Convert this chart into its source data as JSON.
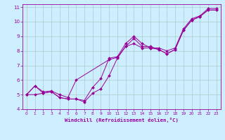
{
  "xlabel": "Windchill (Refroidissement éolien,°C)",
  "bg_color": "#cceeff",
  "line_color": "#990099",
  "grid_color": "#aacccc",
  "xlim": [
    -0.5,
    23.5
  ],
  "ylim": [
    4,
    11.2
  ],
  "xticks": [
    0,
    1,
    2,
    3,
    4,
    5,
    6,
    7,
    8,
    9,
    10,
    11,
    12,
    13,
    14,
    15,
    16,
    17,
    18,
    19,
    20,
    21,
    22,
    23
  ],
  "yticks": [
    4,
    5,
    6,
    7,
    8,
    9,
    10,
    11
  ],
  "line1_x": [
    0,
    1,
    2,
    3,
    4,
    5,
    6,
    7,
    8,
    9,
    10,
    11,
    12,
    13,
    14,
    15,
    16,
    17,
    18,
    19,
    20,
    21,
    22,
    23
  ],
  "line1_y": [
    5.0,
    5.6,
    5.1,
    5.2,
    4.8,
    4.7,
    4.7,
    4.5,
    5.1,
    5.4,
    6.3,
    7.5,
    8.3,
    8.85,
    8.3,
    8.3,
    8.1,
    7.8,
    8.1,
    9.4,
    10.1,
    10.35,
    10.8,
    10.8
  ],
  "line2_x": [
    0,
    1,
    2,
    3,
    4,
    5,
    6,
    10,
    11,
    12,
    13,
    14,
    15,
    16,
    17,
    18,
    19,
    20,
    21,
    22,
    23
  ],
  "line2_y": [
    5.0,
    5.6,
    5.2,
    5.25,
    5.0,
    4.8,
    6.0,
    7.4,
    7.55,
    8.3,
    8.5,
    8.2,
    8.2,
    8.1,
    7.8,
    8.1,
    9.4,
    10.1,
    10.35,
    10.8,
    10.8
  ],
  "line3_x": [
    0,
    1,
    2,
    3,
    4,
    5,
    6,
    7,
    8,
    9,
    10,
    11,
    12,
    13,
    14,
    15,
    16,
    17,
    18,
    19,
    20,
    21,
    22,
    23
  ],
  "line3_y": [
    5.0,
    5.0,
    5.1,
    5.2,
    4.8,
    4.7,
    4.7,
    4.6,
    5.5,
    6.1,
    7.5,
    7.6,
    8.5,
    9.0,
    8.5,
    8.2,
    8.2,
    8.0,
    8.2,
    9.5,
    10.2,
    10.4,
    10.9,
    10.9
  ]
}
